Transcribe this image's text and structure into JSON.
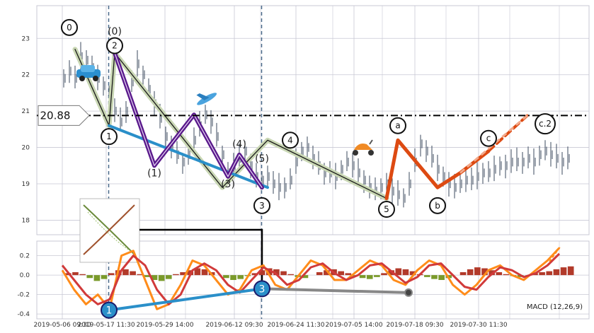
{
  "chart_data": [
    {
      "type": "line",
      "panel": "price",
      "x_ticks": [
        "2019-05-06 09:30",
        "2019-05-17 11:30",
        "2019-05-29 14:00",
        "2019-06-12 09:30",
        "2019-06-24 11:30",
        "2019-07-05 14:00",
        "2019-07-18 09:30",
        "2019-07-30 11:30"
      ],
      "y_ticks": [
        18,
        19,
        20,
        21,
        22,
        23
      ],
      "ylim": [
        17.6,
        23.9
      ],
      "grid": true,
      "level_line": {
        "value": 20.88,
        "label": "20.88"
      },
      "series": [
        {
          "style": "candles",
          "color": "#3b4a5e",
          "x": [
            0,
            2,
            4,
            6,
            8,
            10,
            12,
            14,
            16,
            18,
            20,
            22,
            24,
            26,
            28,
            30,
            32,
            34,
            36,
            38,
            40,
            42,
            44,
            46,
            48,
            50,
            52,
            54,
            56,
            58,
            60,
            62,
            64,
            66,
            68,
            70,
            72,
            74,
            76,
            78,
            80,
            82,
            84,
            86,
            88,
            90,
            92,
            94,
            96,
            98,
            100,
            102,
            104,
            106,
            108,
            110,
            112,
            114,
            116,
            118,
            120,
            122,
            124,
            126,
            128,
            130,
            132,
            134,
            136,
            138,
            140,
            142,
            144,
            146,
            148,
            150,
            152,
            154,
            156,
            158,
            160,
            162,
            164,
            166,
            168,
            170,
            172,
            174,
            176,
            178
          ],
          "y": [
            21.9,
            22.1,
            21.9,
            22.5,
            22.4,
            22.2,
            21.9,
            21.7,
            21.4,
            21.0,
            20.7,
            21.0,
            21.8,
            22.3,
            22.0,
            21.6,
            21.2,
            20.8,
            20.3,
            20.0,
            19.8,
            19.6,
            19.8,
            20.2,
            20.6,
            20.9,
            20.7,
            20.3,
            19.8,
            19.3,
            19.5,
            19.7,
            19.9,
            19.5,
            19.2,
            19.1,
            19.2,
            19.0,
            18.9,
            18.9,
            19.1,
            19.6,
            19.9,
            20.0,
            19.7,
            19.5,
            19.3,
            19.3,
            19.2,
            19.4,
            19.6,
            19.5,
            19.3,
            19.1,
            18.9,
            18.8,
            18.9,
            19.0,
            18.8,
            18.7,
            18.6,
            19.0,
            19.6,
            20.1,
            19.9,
            19.7,
            19.4,
            19.2,
            19.0,
            18.9,
            19.0,
            19.1,
            19.1,
            19.2,
            19.3,
            19.3,
            19.4,
            19.5,
            19.5,
            19.6,
            19.6,
            19.6,
            19.7,
            19.6,
            19.8,
            19.9,
            19.8,
            19.7,
            19.6,
            19.7
          ]
        },
        {
          "style": "elliott-primary",
          "color": "#c9d7b4",
          "x": [
            4,
            16,
            18,
            56,
            72,
            114
          ],
          "y": [
            22.7,
            20.6,
            22.6,
            18.9,
            20.2,
            18.6
          ]
        },
        {
          "style": "elliott-intermediate",
          "color": "#5a1a8c",
          "x": [
            18,
            32,
            46,
            58,
            62,
            70
          ],
          "y": [
            22.6,
            19.5,
            20.9,
            19.2,
            19.8,
            18.9
          ]
        },
        {
          "style": "correction",
          "color": "#dd4a12",
          "x": [
            114,
            118,
            132,
            140,
            150
          ],
          "y": [
            18.6,
            20.2,
            18.9,
            19.3,
            19.9
          ]
        },
        {
          "style": "projection",
          "color": "#dd4a12",
          "dashed": true,
          "x": [
            150,
            164
          ],
          "y": [
            19.9,
            20.9
          ]
        },
        {
          "style": "trendline",
          "color": "#2a8fc9",
          "x": [
            16,
            72
          ],
          "y": [
            20.6,
            18.9
          ]
        }
      ],
      "wave_labels": [
        {
          "text": "0",
          "circled": true,
          "x": 2,
          "y": 23.3
        },
        {
          "text": "(0)",
          "circled": false,
          "x": 18,
          "y": 23.1
        },
        {
          "text": "2",
          "circled": true,
          "x": 18,
          "y": 22.8
        },
        {
          "text": "1",
          "circled": true,
          "x": 16,
          "y": 20.3
        },
        {
          "text": "(1)",
          "circled": false,
          "x": 32,
          "y": 19.2
        },
        {
          "text": "(3)",
          "circled": false,
          "x": 58,
          "y": 18.9
        },
        {
          "text": "(4)",
          "circled": false,
          "x": 62,
          "y": 20.0
        },
        {
          "text": "(5)",
          "circled": false,
          "x": 70,
          "y": 19.6
        },
        {
          "text": "3",
          "circled": true,
          "x": 70,
          "y": 18.4
        },
        {
          "text": "4",
          "circled": true,
          "x": 80,
          "y": 20.2
        },
        {
          "text": "5",
          "circled": true,
          "x": 114,
          "y": 18.3
        },
        {
          "text": "a",
          "circled": true,
          "x": 118,
          "y": 20.6
        },
        {
          "text": "b",
          "circled": true,
          "x": 132,
          "y": 18.4
        },
        {
          "text": "c",
          "circled": true,
          "x": 150,
          "y": 20.25
        },
        {
          "text": "c.2",
          "circled": true,
          "x": 170,
          "y": 20.65
        }
      ]
    },
    {
      "type": "bar",
      "panel": "macd",
      "title": "MACD (12,26,9)",
      "y_ticks": [
        -0.4,
        -0.2,
        0.0,
        0.2
      ],
      "ylim": [
        -0.45,
        0.35
      ],
      "grid": true,
      "histogram": [
        0.02,
        0.03,
        0.01,
        -0.03,
        -0.06,
        -0.04,
        0.02,
        0.05,
        0.06,
        0.04,
        0.01,
        -0.02,
        -0.05,
        -0.06,
        -0.04,
        0.01,
        0.03,
        0.05,
        0.07,
        0.06,
        0.03,
        0.0,
        -0.03,
        -0.05,
        -0.04,
        -0.01,
        0.02,
        0.05,
        0.07,
        0.06,
        0.04,
        0.01,
        -0.02,
        -0.03,
        0.0,
        0.03,
        0.05,
        0.06,
        0.04,
        0.02,
        -0.01,
        -0.03,
        -0.04,
        -0.02,
        0.02,
        0.05,
        0.07,
        0.06,
        0.04,
        0.01,
        -0.02,
        -0.04,
        -0.05,
        -0.03,
        0.0,
        0.03,
        0.06,
        0.08,
        0.07,
        0.05,
        0.03,
        0.01,
        -0.01,
        -0.02,
        0.0,
        0.02,
        0.03,
        0.04,
        0.06,
        0.08,
        0.09
      ],
      "series": [
        {
          "name": "",
          "color": "#ff8c1a",
          "y": [
            0.05,
            -0.15,
            -0.3,
            -0.2,
            -0.35,
            0.2,
            0.25,
            -0.05,
            -0.35,
            -0.3,
            -0.1,
            0.15,
            0.1,
            -0.05,
            -0.2,
            -0.15,
            0.05,
            0.1,
            -0.1,
            -0.15,
            0.0,
            0.15,
            0.1,
            -0.05,
            -0.05,
            0.05,
            0.15,
            0.1,
            -0.05,
            -0.1,
            0.05,
            0.15,
            0.1,
            -0.1,
            -0.2,
            -0.1,
            0.05,
            0.1,
            0.0,
            -0.05,
            0.05,
            0.15,
            0.28
          ]
        },
        {
          "name": "",
          "color": "#d13a3a",
          "y": [
            0.1,
            -0.05,
            -0.2,
            -0.3,
            -0.25,
            0.05,
            0.2,
            0.1,
            -0.15,
            -0.3,
            -0.2,
            0.05,
            0.12,
            0.05,
            -0.1,
            -0.18,
            -0.05,
            0.08,
            0.02,
            -0.1,
            -0.05,
            0.08,
            0.12,
            0.02,
            -0.05,
            0.0,
            0.1,
            0.12,
            0.02,
            -0.08,
            -0.02,
            0.1,
            0.12,
            0.0,
            -0.12,
            -0.15,
            -0.02,
            0.08,
            0.05,
            -0.02,
            0.02,
            0.1,
            0.22
          ]
        }
      ],
      "annotations": [
        {
          "text": "1",
          "x": 16,
          "y": -0.36
        },
        {
          "text": "3",
          "x": 70,
          "y": -0.14
        }
      ]
    }
  ],
  "colors": {
    "background": "#ffffff",
    "panel": "#eaeaf2",
    "grid": "#c8c8d4",
    "level": "#000000"
  }
}
